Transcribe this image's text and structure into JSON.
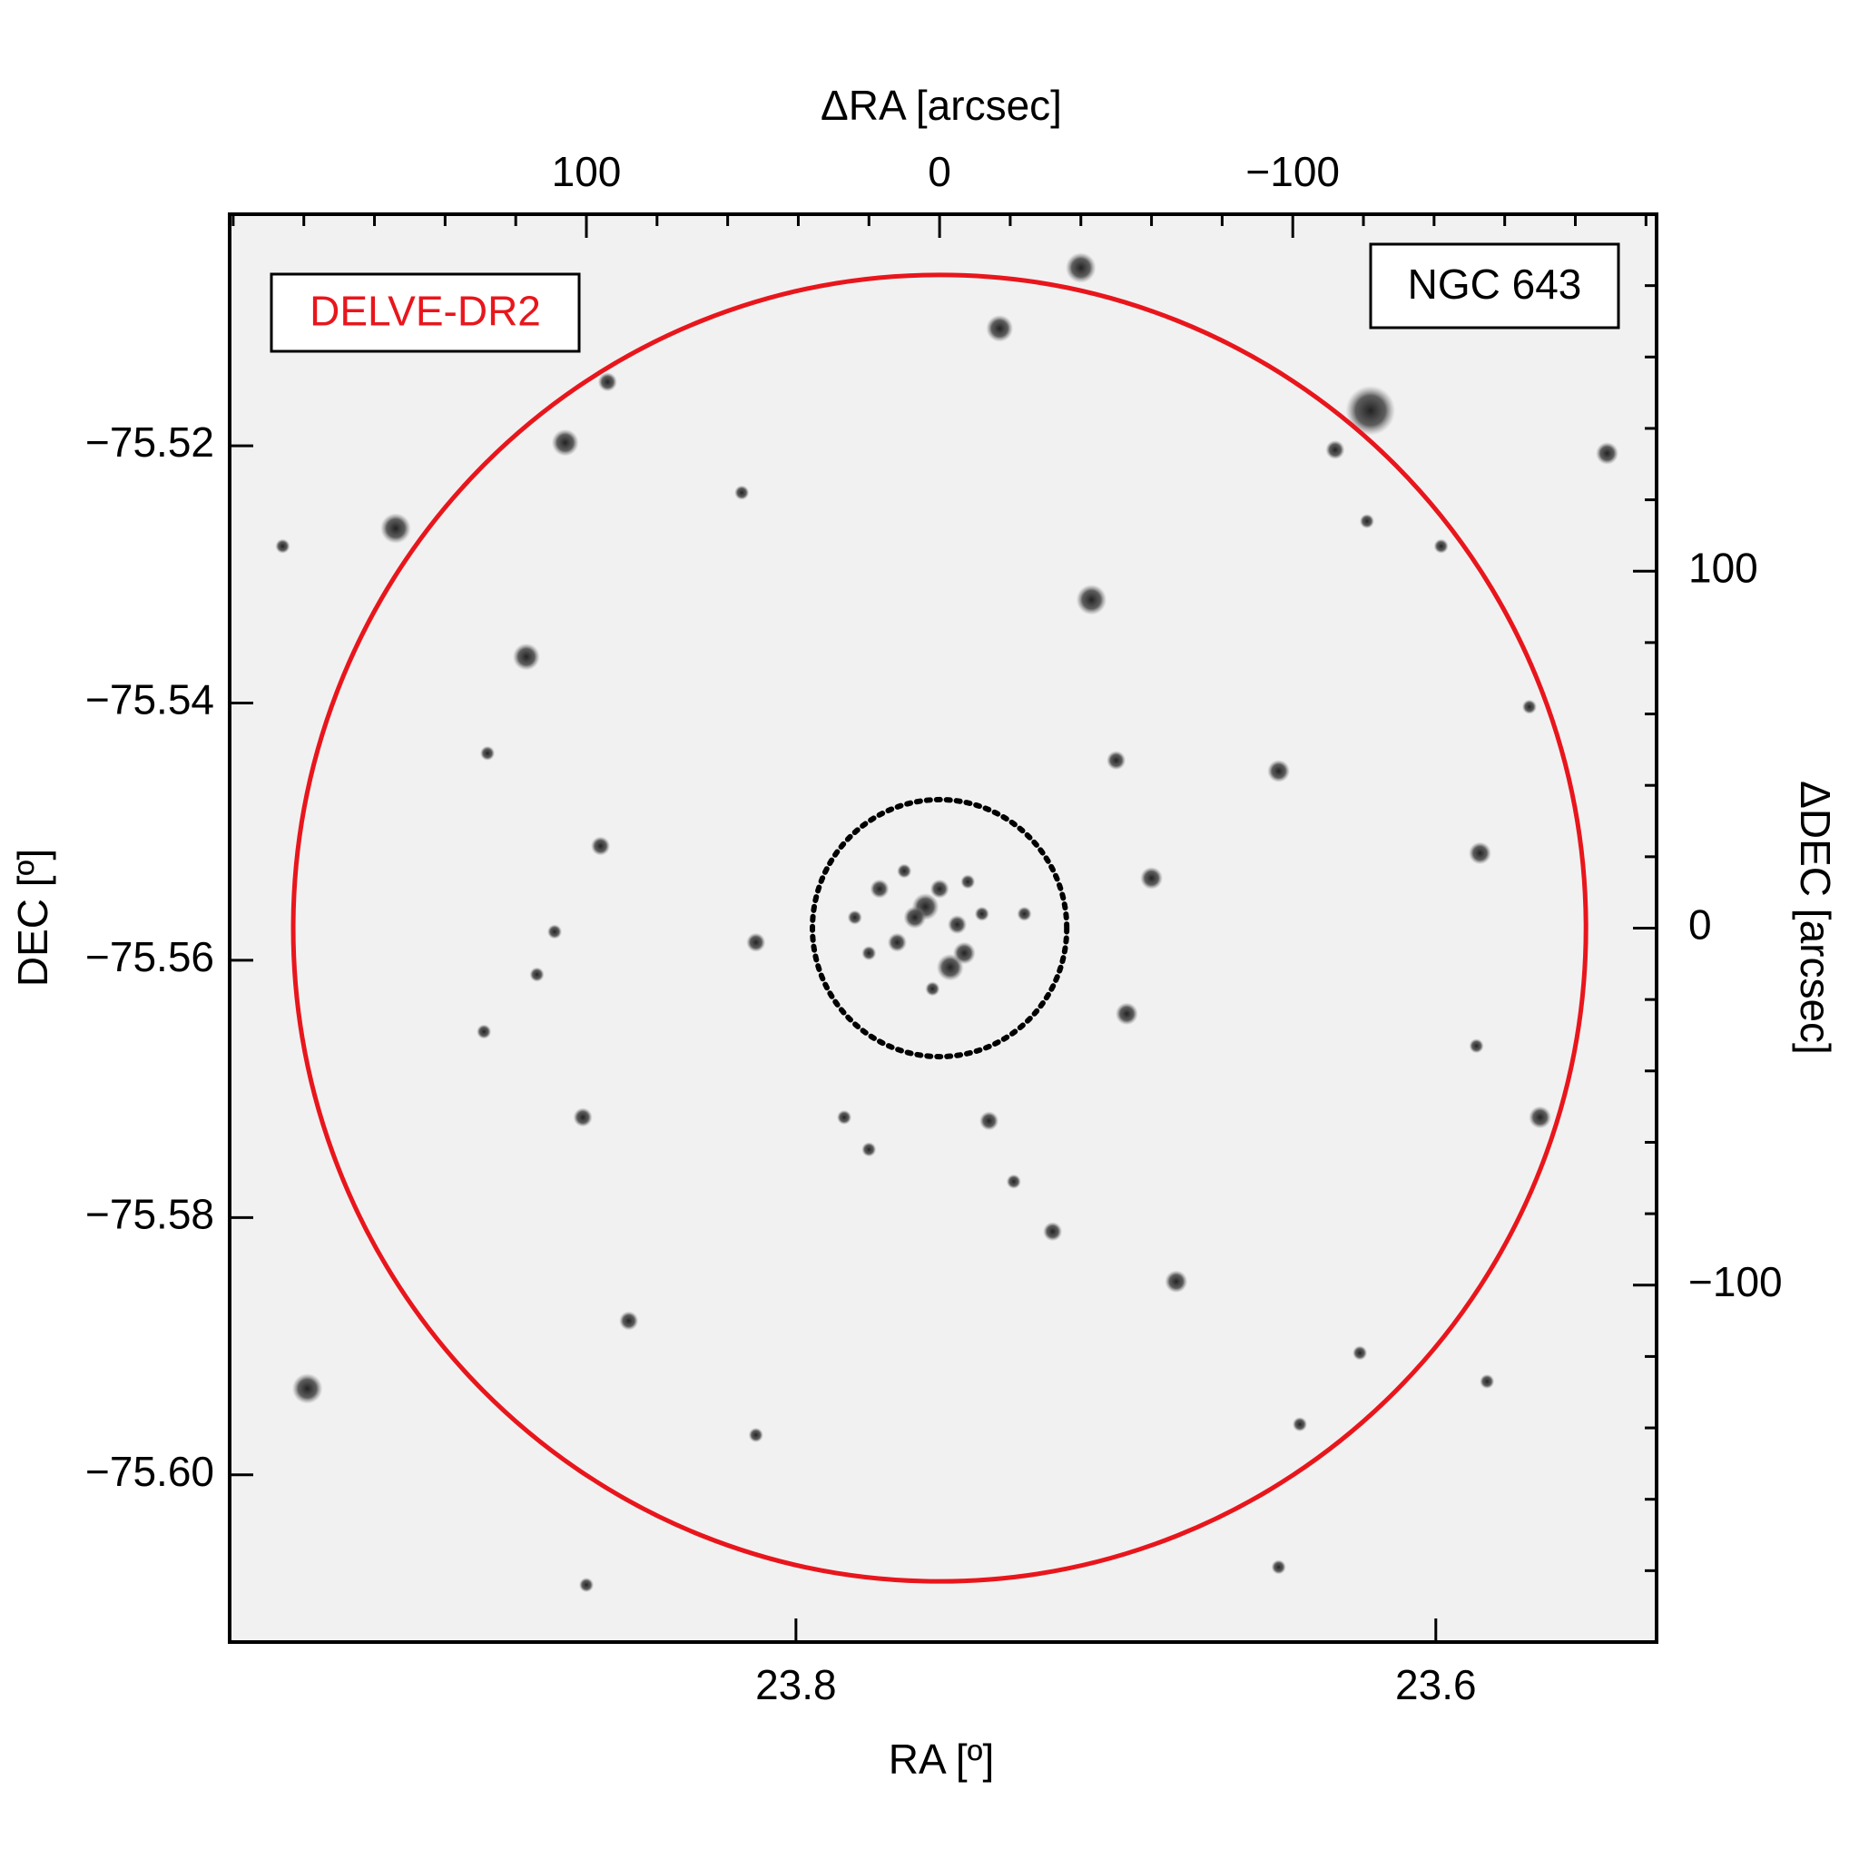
{
  "chart_data": {
    "type": "sky-image",
    "annotations": [
      "DELVE-DR2",
      "NGC 643"
    ],
    "annotation_colors": [
      "#e8161c",
      "#000000"
    ],
    "xlabel": "RA [º]",
    "ylabel": "DEC [º]",
    "x2label": "ΔRA [arcsec]",
    "y2label": "ΔDEC [arcsec]",
    "xlim": [
      23.977,
      23.531
    ],
    "xticks": [
      23.8,
      23.6
    ],
    "ylim": [
      -75.613,
      -75.502
    ],
    "yticks": [
      {
        "value": -75.52,
        "label": "−75.52"
      },
      {
        "value": -75.54,
        "label": "−75.54"
      },
      {
        "value": -75.56,
        "label": "−75.56"
      },
      {
        "value": -75.58,
        "label": "−75.58"
      },
      {
        "value": -75.6,
        "label": "−75.60"
      }
    ],
    "x2lim": [
      201,
      -203
    ],
    "x2ticks": [
      100,
      0,
      {
        "value": -100,
        "label": "−100"
      }
    ],
    "x2minor": [
      200,
      180,
      160,
      140,
      120,
      80,
      60,
      40,
      20,
      -20,
      -40,
      -60,
      -80,
      -120,
      -140,
      -160,
      -180,
      -200
    ],
    "y2lim": [
      -200,
      200
    ],
    "y2ticks": [
      100,
      0,
      {
        "value": -100,
        "label": "−100"
      }
    ],
    "y2minor": [
      180,
      160,
      140,
      120,
      80,
      60,
      40,
      20,
      -20,
      -40,
      -60,
      -80,
      -120,
      -140,
      -160,
      -180
    ],
    "circles": [
      {
        "radius": 183,
        "color": "#e8161c",
        "style": "solid"
      },
      {
        "radius": 36,
        "color": "#000000",
        "style": "dotted"
      }
    ],
    "stars": {
      "x": [
        -40,
        -17,
        -122,
        106,
        154,
        -43,
        117,
        -96,
        -153,
        -60,
        -53,
        -170,
        -67,
        179,
        88,
        96,
        -189,
        -112,
        -50,
        -32,
        -14,
        101,
        129,
        128,
        -119,
        -155,
        52,
        94,
        56,
        -152,
        -167,
        4,
        -3,
        -7,
        7,
        0,
        12,
        -5,
        17,
        -12,
        2,
        -24,
        20,
        10,
        -8,
        24,
        -102,
        52,
        -96,
        100,
        186,
        -142,
        -121,
        109,
        114,
        27,
        20,
        -21
      ],
      "y": [
        185,
        168,
        145,
        136,
        112,
        92,
        76,
        44,
        21,
        14,
        -24,
        -53,
        -99,
        -129,
        -110,
        23,
        133,
        134,
        47,
        -85,
        -54,
        -53,
        -29,
        49,
        -119,
        -127,
        -4,
        153,
        122,
        -33,
        62,
        6,
        -11,
        -7,
        3,
        11,
        -4,
        1,
        11,
        4,
        -17,
        4,
        -7,
        16,
        13,
        3,
        -139,
        -142,
        -179,
        -184,
        107,
        107,
        114,
        -1,
        -13,
        -53,
        -62,
        -71
      ],
      "size": [
        2.7,
        2.4,
        4.4,
        2.4,
        2.7,
        2.7,
        2.4,
        2,
        2,
        2,
        2,
        2,
        2,
        2.7,
        1.7,
        1.7,
        2,
        1.7,
        1.7,
        1.7,
        1.7,
        1.7,
        1.3,
        1.3,
        1.3,
        1.3,
        1.7,
        1.7,
        1.3,
        1.3,
        1.3,
        2.4,
        2.4,
        2,
        2,
        1.7,
        1.7,
        1.7,
        1.7,
        1.3,
        1.3,
        1.3,
        1.3,
        1.3,
        1.3,
        1.3,
        1.3,
        1.3,
        1.3,
        1.3,
        1.3,
        1.3,
        1.3,
        1.3,
        1.3,
        1.3,
        1.3,
        1.3
      ]
    }
  }
}
